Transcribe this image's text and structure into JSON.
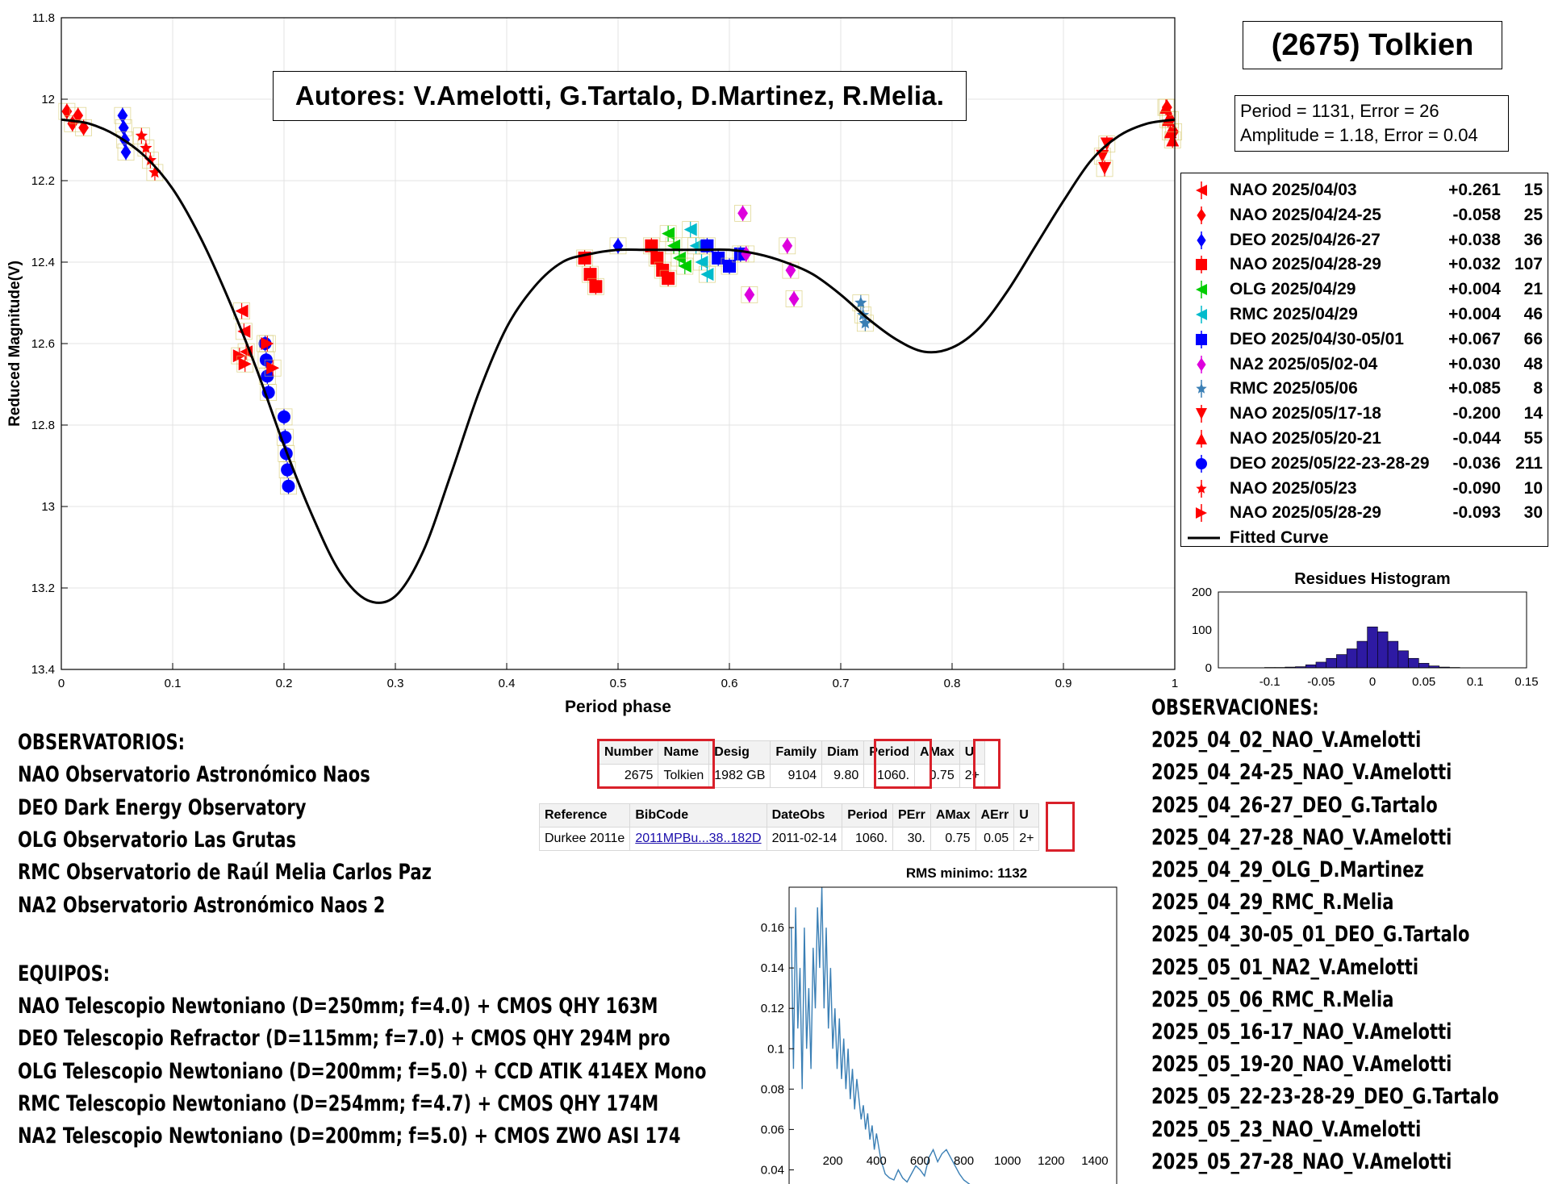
{
  "page_title": "(2675) Tolkien",
  "authors": "Autores: V.Amelotti, G.Tartalo, D.Martinez, R.Melia.",
  "fit": {
    "period_line": "Period =  1131, Error = 26",
    "amplitude_line": "Amplitude = 1.18, Error = 0.04"
  },
  "colors": {
    "red": "#ff0000",
    "blue": "#0000ff",
    "green": "#00cc00",
    "cyan": "#00bbcc",
    "magenta": "#dd00dd",
    "histogram": "#2e1aa3",
    "periodogram": "#3a7fb5",
    "highlight_box": "#d9202a"
  },
  "legend": [
    {
      "label": "NAO 2025/04/03",
      "offset": "+0.261",
      "count": "15",
      "color": "#ff0000",
      "icon": "triangle-left-icon"
    },
    {
      "label": "NAO 2025/04/24-25",
      "offset": "-0.058",
      "count": "25",
      "color": "#ff0000",
      "icon": "diamond-icon"
    },
    {
      "label": "DEO 2025/04/26-27",
      "offset": "+0.038",
      "count": "36",
      "color": "#0000ff",
      "icon": "diamond-icon"
    },
    {
      "label": "NAO 2025/04/28-29",
      "offset": "+0.032",
      "count": "107",
      "color": "#ff0000",
      "icon": "square-icon"
    },
    {
      "label": "OLG 2025/04/29",
      "offset": "+0.004",
      "count": "21",
      "color": "#00cc00",
      "icon": "triangle-left-icon"
    },
    {
      "label": "RMC 2025/04/29",
      "offset": "+0.004",
      "count": "46",
      "color": "#00bbcc",
      "icon": "triangle-left-icon"
    },
    {
      "label": "DEO 2025/04/30-05/01",
      "offset": "+0.067",
      "count": "66",
      "color": "#0000ff",
      "icon": "square-icon"
    },
    {
      "label": "NA2 2025/05/02-04",
      "offset": "+0.030",
      "count": "48",
      "color": "#dd00dd",
      "icon": "diamond-icon"
    },
    {
      "label": "RMC 2025/05/06",
      "offset": "+0.085",
      "count": "8",
      "color": "#3a7fb5",
      "icon": "star-icon"
    },
    {
      "label": "NAO 2025/05/17-18",
      "offset": "-0.200",
      "count": "14",
      "color": "#ff0000",
      "icon": "triangle-down-icon"
    },
    {
      "label": "NAO 2025/05/20-21",
      "offset": "-0.044",
      "count": "55",
      "color": "#ff0000",
      "icon": "triangle-up-icon"
    },
    {
      "label": "DEO 2025/05/22-23-28-29",
      "offset": "-0.036",
      "count": "211",
      "color": "#0000ff",
      "icon": "circle-icon"
    },
    {
      "label": "NAO 2025/05/23",
      "offset": "-0.090",
      "count": "10",
      "color": "#ff0000",
      "icon": "star-icon"
    },
    {
      "label": "NAO 2025/05/28-29",
      "offset": "-0.093",
      "count": "30",
      "color": "#ff0000",
      "icon": "triangle-right-icon"
    },
    {
      "label": "Fitted Curve",
      "offset": "",
      "count": "",
      "color": "#000000",
      "icon": "line-icon"
    }
  ],
  "chart_data": [
    {
      "type": "scatter",
      "title": "",
      "xlabel": "Period phase",
      "ylabel": "Reduced Magnitude(V)",
      "xlim": [
        0,
        1
      ],
      "ylim": [
        11.8,
        13.4
      ],
      "y_inverted": true,
      "grid": true,
      "legend_position": "right",
      "xticks": [
        "0",
        "0.1",
        "0.2",
        "0.3",
        "0.4",
        "0.5",
        "0.6",
        "0.7",
        "0.8",
        "0.9",
        "1"
      ],
      "yticks": [
        "11.8",
        "12",
        "12.2",
        "12.4",
        "12.6",
        "12.8",
        "13",
        "13.2",
        "13.4"
      ],
      "fitted_curve": {
        "name": "Fitted Curve",
        "x": [
          0,
          0.025,
          0.05,
          0.075,
          0.1,
          0.125,
          0.15,
          0.175,
          0.2,
          0.225,
          0.25,
          0.275,
          0.3,
          0.325,
          0.35,
          0.375,
          0.4,
          0.425,
          0.45,
          0.475,
          0.5,
          0.525,
          0.55,
          0.575,
          0.6,
          0.625,
          0.65,
          0.675,
          0.7,
          0.725,
          0.75,
          0.775,
          0.8,
          0.825,
          0.85,
          0.875,
          0.9,
          0.925,
          0.95,
          0.975,
          1
        ],
        "y": [
          12.05,
          12.06,
          12.09,
          12.14,
          12.22,
          12.34,
          12.49,
          12.66,
          12.85,
          13.02,
          13.16,
          13.23,
          13.22,
          13.11,
          12.92,
          12.72,
          12.56,
          12.46,
          12.4,
          12.38,
          12.37,
          12.37,
          12.37,
          12.37,
          12.37,
          12.38,
          12.4,
          12.43,
          12.48,
          12.54,
          12.59,
          12.62,
          12.61,
          12.56,
          12.47,
          12.36,
          12.25,
          12.15,
          12.09,
          12.06,
          12.05
        ]
      },
      "series": [
        {
          "name": "NAO 2025/04/03",
          "marker": "triangle-left",
          "color": "#ff0000",
          "x": [
            0.162,
            0.164,
            0.166
          ],
          "y": [
            12.52,
            12.57,
            12.62
          ]
        },
        {
          "name": "NAO 2025/04/24-25",
          "marker": "diamond",
          "color": "#ff0000",
          "x": [
            0.005,
            0.01,
            0.015,
            0.02,
            0.993,
            0.996,
            0.999
          ],
          "y": [
            12.03,
            12.06,
            12.04,
            12.07,
            12.02,
            12.05,
            12.08
          ]
        },
        {
          "name": "DEO 2025/04/26-27",
          "marker": "diamond",
          "color": "#0000ff",
          "x": [
            0.055,
            0.056,
            0.057,
            0.058,
            0.5
          ],
          "y": [
            12.04,
            12.07,
            12.1,
            12.13,
            12.36
          ]
        },
        {
          "name": "NAO 2025/04/28-29",
          "marker": "square",
          "color": "#ff0000",
          "x": [
            0.47,
            0.475,
            0.48,
            0.53,
            0.535,
            0.54,
            0.545
          ],
          "y": [
            12.39,
            12.43,
            12.46,
            12.36,
            12.39,
            12.42,
            12.44
          ]
        },
        {
          "name": "OLG 2025/04/29",
          "marker": "triangle-left",
          "color": "#00cc00",
          "x": [
            0.545,
            0.55,
            0.555,
            0.56
          ],
          "y": [
            12.33,
            12.36,
            12.39,
            12.41
          ]
        },
        {
          "name": "RMC 2025/04/29",
          "marker": "triangle-left",
          "color": "#00bbcc",
          "x": [
            0.565,
            0.57,
            0.575,
            0.58
          ],
          "y": [
            12.32,
            12.36,
            12.4,
            12.43
          ]
        },
        {
          "name": "DEO 2025/04/30-05/01",
          "marker": "square",
          "color": "#0000ff",
          "x": [
            0.58,
            0.59,
            0.6,
            0.61
          ],
          "y": [
            12.36,
            12.39,
            12.41,
            12.38
          ]
        },
        {
          "name": "NA2 2025/05/02-04",
          "marker": "diamond",
          "color": "#dd00dd",
          "x": [
            0.612,
            0.615,
            0.618,
            0.652,
            0.655,
            0.658
          ],
          "y": [
            12.28,
            12.38,
            12.48,
            12.36,
            12.42,
            12.49
          ]
        },
        {
          "name": "RMC 2025/05/06",
          "marker": "star",
          "color": "#3a7fb5",
          "x": [
            0.718,
            0.72,
            0.722
          ],
          "y": [
            12.5,
            12.53,
            12.55
          ]
        },
        {
          "name": "NAO 2025/05/17-18",
          "marker": "triangle-down",
          "color": "#ff0000",
          "x": [
            0.935,
            0.937,
            0.939
          ],
          "y": [
            12.14,
            12.17,
            12.11
          ]
        },
        {
          "name": "NAO 2025/05/20-21",
          "marker": "triangle-up",
          "color": "#ff0000",
          "x": [
            0.992,
            0.994,
            0.996,
            0.998
          ],
          "y": [
            12.02,
            12.05,
            12.08,
            12.1
          ]
        },
        {
          "name": "DEO 2025/05/22-23-28-29",
          "marker": "circle",
          "color": "#0000ff",
          "x": [
            0.183,
            0.184,
            0.185,
            0.186,
            0.2,
            0.201,
            0.202,
            0.203,
            0.204
          ],
          "y": [
            12.6,
            12.64,
            12.68,
            12.72,
            12.78,
            12.83,
            12.87,
            12.91,
            12.95
          ]
        },
        {
          "name": "NAO 2025/05/23",
          "marker": "star",
          "color": "#ff0000",
          "x": [
            0.072,
            0.076,
            0.08,
            0.084
          ],
          "y": [
            12.09,
            12.12,
            12.15,
            12.18
          ]
        },
        {
          "name": "NAO 2025/05/28-29",
          "marker": "triangle-right",
          "color": "#ff0000",
          "x": [
            0.16,
            0.165,
            0.185,
            0.19
          ],
          "y": [
            12.63,
            12.65,
            12.6,
            12.66
          ]
        }
      ]
    },
    {
      "type": "bar",
      "title": "Residues Histogram",
      "xlim": [
        -0.15,
        0.15
      ],
      "ylim": [
        0,
        200
      ],
      "xticks": [
        "-0.1",
        "-0.05",
        "0",
        "0.05",
        "0.1",
        "0.15"
      ],
      "yticks": [
        "0",
        "100",
        "200"
      ],
      "bin_width": 0.01,
      "x": [
        -0.1,
        -0.09,
        -0.08,
        -0.07,
        -0.06,
        -0.05,
        -0.04,
        -0.03,
        -0.02,
        -0.01,
        0,
        0.01,
        0.02,
        0.03,
        0.04,
        0.05,
        0.06,
        0.07,
        0.08
      ],
      "values": [
        1,
        1,
        2,
        3,
        8,
        15,
        25,
        35,
        50,
        70,
        108,
        95,
        70,
        45,
        25,
        12,
        5,
        2,
        1
      ]
    },
    {
      "type": "line",
      "title": "RMS minimo: 1132",
      "xlim": [
        0,
        1500
      ],
      "ylim": [
        0.025,
        0.18
      ],
      "xticks": [
        "200",
        "400",
        "600",
        "800",
        "1000",
        "1200",
        "1400"
      ],
      "yticks": [
        "0.04",
        "0.06",
        "0.08",
        "0.1",
        "0.12",
        "0.14",
        "0.16"
      ],
      "x": [
        10,
        20,
        30,
        40,
        50,
        60,
        70,
        80,
        90,
        100,
        110,
        120,
        130,
        140,
        150,
        160,
        170,
        180,
        190,
        200,
        210,
        220,
        230,
        240,
        250,
        260,
        270,
        280,
        290,
        300,
        310,
        320,
        330,
        340,
        350,
        360,
        370,
        380,
        390,
        400,
        420,
        440,
        460,
        480,
        500,
        520,
        540,
        560,
        580,
        600,
        620,
        640,
        660,
        680,
        700,
        720,
        740,
        760,
        780,
        800,
        850,
        900,
        950,
        1000,
        1100,
        1200,
        1300,
        1400,
        1500
      ],
      "values": [
        0.16,
        0.09,
        0.17,
        0.11,
        0.14,
        0.08,
        0.16,
        0.1,
        0.13,
        0.09,
        0.15,
        0.12,
        0.17,
        0.14,
        0.18,
        0.12,
        0.16,
        0.11,
        0.14,
        0.1,
        0.12,
        0.09,
        0.115,
        0.085,
        0.105,
        0.08,
        0.1,
        0.075,
        0.09,
        0.07,
        0.085,
        0.075,
        0.065,
        0.072,
        0.06,
        0.068,
        0.055,
        0.062,
        0.05,
        0.058,
        0.045,
        0.038,
        0.036,
        0.035,
        0.04,
        0.036,
        0.034,
        0.038,
        0.042,
        0.04,
        0.037,
        0.046,
        0.05,
        0.044,
        0.048,
        0.05,
        0.046,
        0.042,
        0.038,
        0.035,
        0.031,
        0.03,
        0.029,
        0.029,
        0.028,
        0.028,
        0.028,
        0.028,
        0.028
      ]
    }
  ],
  "observatorios": {
    "heading": "OBSERVATORIOS:",
    "items": [
      "NAO Observatorio Astronómico Naos",
      "DEO Dark Energy Observatory",
      "OLG Observatorio Las Grutas",
      "RMC Observatorio de Raúl Melia Carlos Paz",
      "NA2 Observatorio Astronómico Naos 2"
    ]
  },
  "equipos": {
    "heading": "EQUIPOS:",
    "items": [
      "NAO Telescopio Newtoniano (D=250mm; f=4.0) + CMOS QHY 163M",
      "DEO Telescopio Refractor (D=115mm; f=7.0) + CMOS QHY 294M pro",
      "OLG Telescopio Newtoniano (D=200mm; f=5.0) + CCD ATIK 414EX Mono",
      "RMC Telescopio Newtoniano (D=254mm; f=4.7) + CMOS QHY 174M",
      "NA2 Telescopio Newtoniano (D=200mm; f=5.0) + CMOS ZWO ASI 174"
    ]
  },
  "observaciones": {
    "heading": "OBSERVACIONES:",
    "items": [
      "2025_04_02_NAO_V.Amelotti",
      "2025_04_24-25_NAO_V.Amelotti",
      "2025_04_26-27_DEO_G.Tartalo",
      "2025_04_27-28_NAO_V.Amelotti",
      "2025_04_29_OLG_D.Martinez",
      "2025_04_29_RMC_R.Melia",
      "2025_04_30-05_01_DEO_G.Tartalo",
      "2025_05_01_NA2_V.Amelotti",
      "2025_05_06_RMC_R.Melia",
      "2025_05_16-17_NAO_V.Amelotti",
      "2025_05_19-20_NAO_V.Amelotti",
      "2025_05_22-23-28-29_DEO_G.Tartalo",
      "2025_05_23_NAO_V.Amelotti",
      "2025_05_27-28_NAO_V.Amelotti"
    ]
  },
  "lcdb_table": {
    "headers": [
      "Number",
      "Name",
      "Desig",
      "Family",
      "Diam",
      "Period",
      "AMax",
      "U"
    ],
    "row": [
      "2675",
      "Tolkien",
      "1982 GB",
      "9104",
      "9.80",
      "1060.",
      "0.75",
      "2+"
    ]
  },
  "reference_table": {
    "headers": [
      "Reference",
      "BibCode",
      "DateObs",
      "Period",
      "PErr",
      "AMax",
      "AErr",
      "U"
    ],
    "row": [
      "Durkee 2011e",
      "2011MPBu...38..182D",
      "2011-02-14",
      "1060.",
      "30.",
      "0.75",
      "0.05",
      "2+"
    ]
  }
}
